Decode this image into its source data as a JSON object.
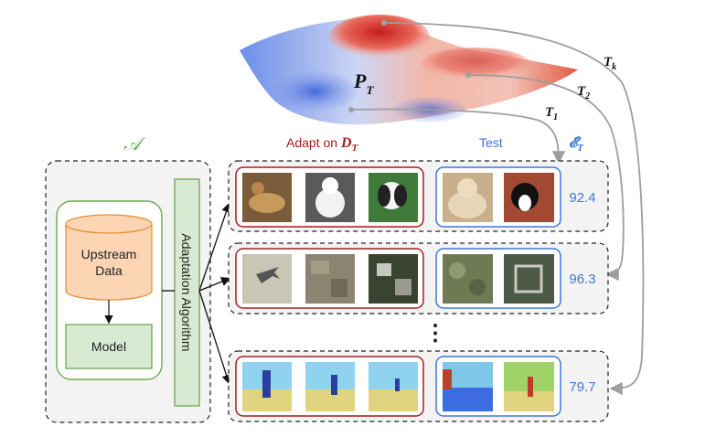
{
  "algorithm": {
    "symbol": "𝒜",
    "upstream_label_line1": "Upstream",
    "upstream_label_line2": "Data",
    "model_label": "Model",
    "adaptation_label": "Adaptation Algorithm"
  },
  "headers": {
    "adapt_prefix": "Adapt on ",
    "adapt_symbol": "D",
    "adapt_sub": "T",
    "test_label": "Test",
    "score_symbol": "𝓔",
    "score_sub": "T"
  },
  "surface": {
    "p_label": "P",
    "p_sub": "T"
  },
  "tasks": [
    {
      "t_label": "T",
      "t_sub": "1",
      "score": "92.4"
    },
    {
      "t_label": "T",
      "t_sub": "2",
      "score": "96.3"
    },
    {
      "t_label": "T",
      "t_sub": "k",
      "score": "79.7"
    }
  ],
  "ellipsis": "⋮",
  "colors": {
    "green": "#6aa84f",
    "green_fill": "#d9ead3",
    "orange_fill": "#fcd5b4",
    "orange_stroke": "#e69138",
    "red": "#a61c1c",
    "blue": "#3d78d8",
    "row_fill": "#f3f3f3",
    "arrow_grey": "#9e9e9e"
  }
}
